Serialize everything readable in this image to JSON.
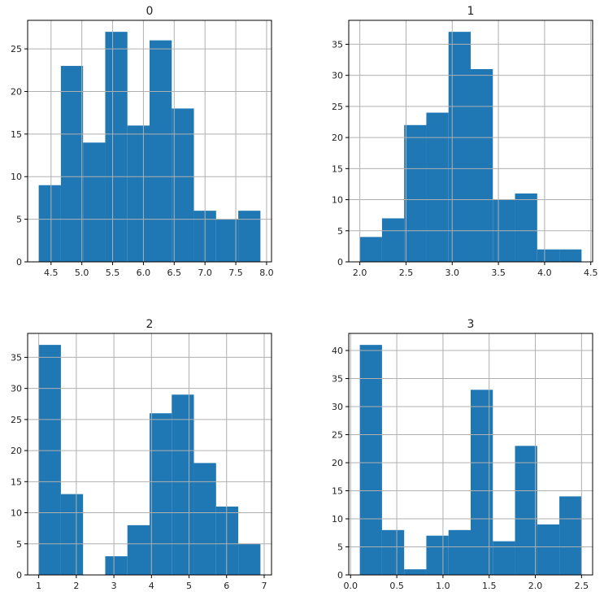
{
  "colors": {
    "bar": "#1f77b4",
    "grid": "#b0b0b0",
    "axis": "#000000"
  },
  "chart_data": [
    {
      "type": "bar",
      "title": "0",
      "grid": true,
      "bin_edges": [
        4.3,
        4.66,
        5.02,
        5.38,
        5.74,
        6.1,
        6.46,
        6.82,
        7.18,
        7.54,
        7.9
      ],
      "values": [
        9,
        23,
        14,
        27,
        16,
        26,
        18,
        6,
        5,
        6
      ],
      "xlim": [
        4.12,
        8.08
      ],
      "ylim": [
        0,
        28.35
      ],
      "xticks": [
        4.5,
        5.0,
        5.5,
        6.0,
        6.5,
        7.0,
        7.5,
        8.0
      ],
      "xtick_labels": [
        "4.5",
        "5.0",
        "5.5",
        "6.0",
        "6.5",
        "7.0",
        "7.5",
        "8.0"
      ],
      "yticks": [
        0,
        5,
        10,
        15,
        20,
        25
      ],
      "ytick_labels": [
        "0",
        "5",
        "10",
        "15",
        "20",
        "25"
      ]
    },
    {
      "type": "bar",
      "title": "1",
      "grid": true,
      "bin_edges": [
        2.0,
        2.24,
        2.48,
        2.72,
        2.96,
        3.2,
        3.44,
        3.68,
        3.92,
        4.16,
        4.4
      ],
      "values": [
        4,
        7,
        22,
        24,
        37,
        31,
        10,
        11,
        2,
        2
      ],
      "xlim": [
        1.88,
        4.52
      ],
      "ylim": [
        0,
        38.85
      ],
      "xticks": [
        2.0,
        2.5,
        3.0,
        3.5,
        4.0,
        4.5
      ],
      "xtick_labels": [
        "2.0",
        "2.5",
        "3.0",
        "3.5",
        "4.0",
        "4.5"
      ],
      "yticks": [
        0,
        5,
        10,
        15,
        20,
        25,
        30,
        35
      ],
      "ytick_labels": [
        "0",
        "5",
        "10",
        "15",
        "20",
        "25",
        "30",
        "35"
      ]
    },
    {
      "type": "bar",
      "title": "2",
      "grid": true,
      "bin_edges": [
        1.0,
        1.59,
        2.18,
        2.77,
        3.36,
        3.95,
        4.54,
        5.13,
        5.72,
        6.31,
        6.9
      ],
      "values": [
        37,
        13,
        0,
        3,
        8,
        26,
        29,
        18,
        11,
        5
      ],
      "xlim": [
        0.705,
        7.195
      ],
      "ylim": [
        0,
        38.85
      ],
      "xticks": [
        1,
        2,
        3,
        4,
        5,
        6,
        7
      ],
      "xtick_labels": [
        "1",
        "2",
        "3",
        "4",
        "5",
        "6",
        "7"
      ],
      "yticks": [
        0,
        5,
        10,
        15,
        20,
        25,
        30,
        35
      ],
      "ytick_labels": [
        "0",
        "5",
        "10",
        "15",
        "20",
        "25",
        "30",
        "35"
      ]
    },
    {
      "type": "bar",
      "title": "3",
      "grid": true,
      "bin_edges": [
        0.1,
        0.34,
        0.58,
        0.82,
        1.06,
        1.3,
        1.54,
        1.78,
        2.02,
        2.26,
        2.5
      ],
      "values": [
        41,
        8,
        1,
        7,
        8,
        33,
        6,
        23,
        9,
        14
      ],
      "xlim": [
        -0.02,
        2.62
      ],
      "ylim": [
        0,
        43.05
      ],
      "xticks": [
        0.0,
        0.5,
        1.0,
        1.5,
        2.0,
        2.5
      ],
      "xtick_labels": [
        "0.0",
        "0.5",
        "1.0",
        "1.5",
        "2.0",
        "2.5"
      ],
      "yticks": [
        0,
        5,
        10,
        15,
        20,
        25,
        30,
        35,
        40
      ],
      "ytick_labels": [
        "0",
        "5",
        "10",
        "15",
        "20",
        "25",
        "30",
        "35",
        "40"
      ]
    }
  ]
}
